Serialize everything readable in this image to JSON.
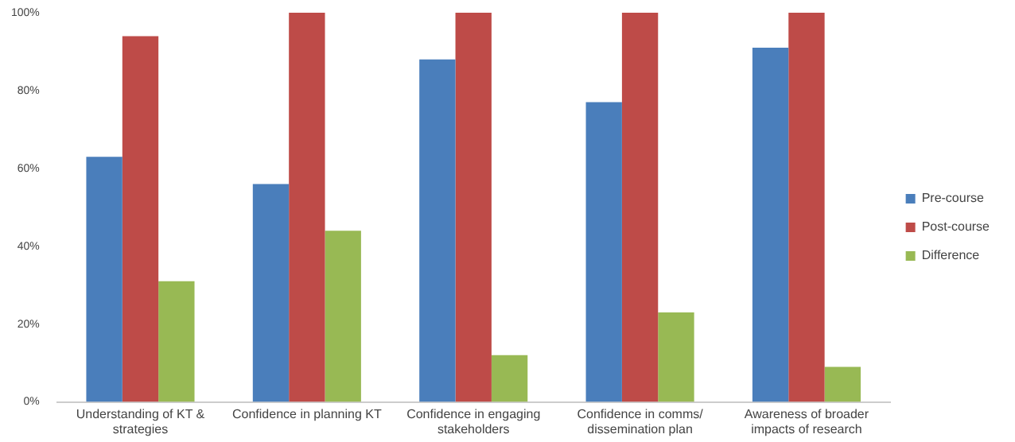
{
  "chart_data": {
    "type": "bar",
    "categories": [
      "Understanding of KT & strategies",
      "Confidence in planning KT",
      "Confidence in engaging stakeholders",
      "Confidence in comms/ dissemination plan",
      "Awareness of broader impacts of research"
    ],
    "series": [
      {
        "name": "Pre-course",
        "color": "#4a7ebb",
        "values": [
          63,
          56,
          88,
          77,
          91
        ]
      },
      {
        "name": "Post-course",
        "color": "#be4b48",
        "values": [
          94,
          100,
          100,
          100,
          100
        ]
      },
      {
        "name": "Difference",
        "color": "#98b954",
        "values": [
          31,
          44,
          12,
          23,
          9
        ]
      }
    ],
    "ylim": [
      0,
      100
    ],
    "yticks": [
      {
        "value": 0,
        "label": "0%"
      },
      {
        "value": 20,
        "label": "20%"
      },
      {
        "value": 40,
        "label": "40%"
      },
      {
        "value": 60,
        "label": "60%"
      },
      {
        "value": 80,
        "label": "80%"
      },
      {
        "value": 100,
        "label": "100%"
      }
    ],
    "grid": false,
    "legend": "right"
  }
}
